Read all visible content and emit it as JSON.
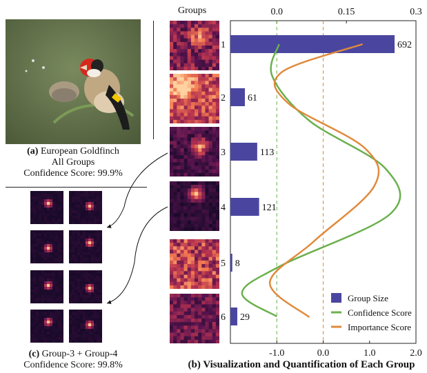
{
  "panel_a": {
    "label": "(a)",
    "species": "European Goldfinch",
    "subtitle": "All Groups",
    "confidence": "Confidence Score: 99.9%"
  },
  "panel_c": {
    "label": "(c)",
    "title": "Group-3 + Group-4",
    "confidence": "Confidence Score: 99.8%"
  },
  "panel_b": {
    "caption": "(b) Visualization and Quantification of Each Group",
    "groups_header": "Groups"
  },
  "chart_data": {
    "type": "bar",
    "categories": [
      "1",
      "2",
      "3",
      "4",
      "5",
      "6"
    ],
    "series": [
      {
        "name": "Group Size",
        "values": [
          692,
          61,
          113,
          121,
          8,
          29
        ],
        "color": "#4a46a0"
      },
      {
        "name": "Confidence Score",
        "values": [
          0.06,
          0.0,
          0.22,
          0.26,
          0.0,
          0.0
        ],
        "color": "#6ab04c"
      },
      {
        "name": "Importance Score",
        "values": [
          1.2,
          -1.0,
          1.25,
          1.15,
          -1.1,
          -0.2
        ],
        "color": "#e08a3c"
      }
    ],
    "top_axis": {
      "ticks": [
        "0.0",
        "0.15",
        "0.3"
      ],
      "range": [
        -0.1,
        0.3
      ]
    },
    "bottom_axis": {
      "ticks": [
        "-1.0",
        "0.0",
        "1.0",
        "2.0"
      ],
      "range": [
        -2.0,
        2.0
      ]
    },
    "legend": [
      "Group Size",
      "Confidence Score",
      "Importance Score"
    ],
    "legend_position": "bottom-right",
    "bar_labels": [
      "692",
      "61",
      "113",
      "121",
      "8",
      "29"
    ]
  },
  "colors": {
    "bar": "#4a46a0",
    "confidence": "#6ab04c",
    "importance": "#e08a3c",
    "heat_dark": "#1a0a2a",
    "heat_bright": "#ffd0a0"
  }
}
